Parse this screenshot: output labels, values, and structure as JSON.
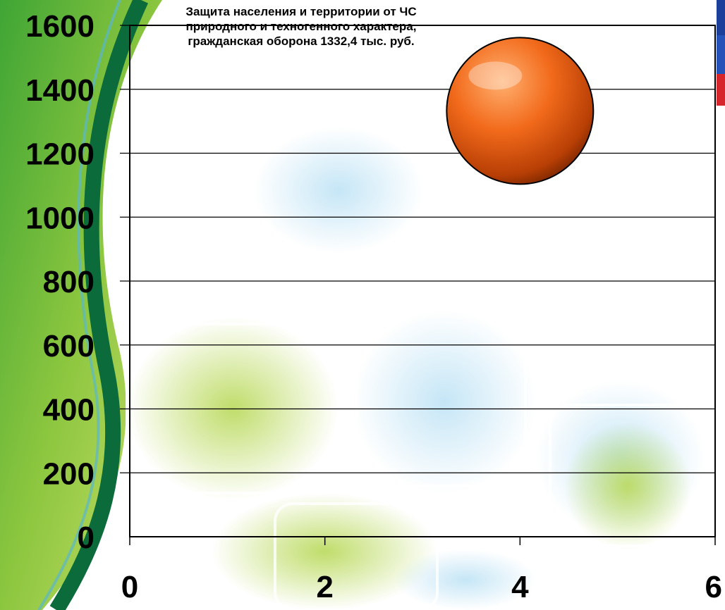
{
  "chart_data": {
    "type": "bubble",
    "x_ticks": [
      "0",
      "2",
      "4",
      "6"
    ],
    "y_ticks": [
      "0",
      "200",
      "400",
      "600",
      "800",
      "1000",
      "1200",
      "1400",
      "1600"
    ],
    "xlim": [
      0,
      6
    ],
    "ylim": [
      0,
      1600
    ],
    "grid": "horizontal",
    "points": [
      {
        "x": 4,
        "y": 1332.4,
        "value": 1332.4,
        "label": "Защита населения и территории от ЧС природного и техногенного характера, гражданская оборона  1332,4 тыс. руб.",
        "color": "#e0580f"
      }
    ]
  }
}
